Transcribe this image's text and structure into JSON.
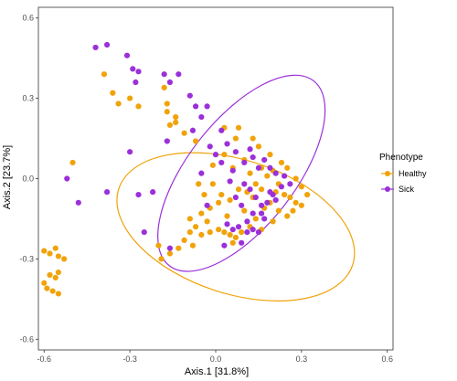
{
  "chart_data": {
    "type": "scatter",
    "title": "",
    "xlabel": "Axis.1   [31.8%]",
    "ylabel": "Axis.2   [23.7%]",
    "xlim": [
      -0.62,
      0.62
    ],
    "ylim": [
      -0.64,
      0.64
    ],
    "x_ticks": [
      -0.6,
      -0.3,
      0.0,
      0.3,
      0.6
    ],
    "y_ticks": [
      -0.6,
      -0.3,
      0.0,
      0.3,
      0.6
    ],
    "x_tick_labels": [
      "-0.6",
      "-0.3",
      "0.0",
      "0.3",
      "0.6"
    ],
    "y_tick_labels": [
      "-0.6",
      "-0.3",
      "0.0",
      "0.3",
      "0.6"
    ],
    "grid": false,
    "legend": {
      "title": "Phenotype",
      "placement": "right"
    },
    "series": [
      {
        "name": "Healthy",
        "color": "#f0a30a",
        "ellipse": {
          "cx": 0.07,
          "cy": -0.18,
          "rx": 0.43,
          "ry": 0.25,
          "angle_deg": 18
        },
        "points": [
          [
            -0.6,
            -0.27
          ],
          [
            -0.58,
            -0.28
          ],
          [
            -0.56,
            -0.26
          ],
          [
            -0.55,
            -0.29
          ],
          [
            -0.55,
            -0.35
          ],
          [
            -0.56,
            -0.37
          ],
          [
            -0.58,
            -0.36
          ],
          [
            -0.6,
            -0.39
          ],
          [
            -0.59,
            -0.41
          ],
          [
            -0.57,
            -0.42
          ],
          [
            -0.55,
            -0.43
          ],
          [
            -0.53,
            -0.3
          ],
          [
            -0.5,
            0.06
          ],
          [
            -0.39,
            0.39
          ],
          [
            -0.36,
            0.32
          ],
          [
            -0.34,
            0.28
          ],
          [
            -0.3,
            0.3
          ],
          [
            -0.27,
            0.27
          ],
          [
            -0.18,
            0.34
          ],
          [
            -0.17,
            0.28
          ],
          [
            -0.17,
            0.25
          ],
          [
            -0.14,
            0.23
          ],
          [
            -0.16,
            0.2
          ],
          [
            -0.14,
            0.21
          ],
          [
            -0.11,
            0.17
          ],
          [
            -0.07,
            0.14
          ],
          [
            0.03,
            0.19
          ],
          [
            0.07,
            0.15
          ],
          [
            0.08,
            0.19
          ],
          [
            0.13,
            0.15
          ],
          [
            0.15,
            0.12
          ],
          [
            0.19,
            0.09
          ],
          [
            0.23,
            0.06
          ],
          [
            0.25,
            0.04
          ],
          [
            0.28,
            0.0
          ],
          [
            0.3,
            -0.03
          ],
          [
            0.32,
            -0.06
          ],
          [
            0.3,
            -0.1
          ],
          [
            0.27,
            -0.12
          ],
          [
            0.25,
            -0.14
          ],
          [
            0.24,
            -0.06
          ],
          [
            0.21,
            -0.05
          ],
          [
            0.19,
            -0.09
          ],
          [
            0.17,
            -0.11
          ],
          [
            0.14,
            -0.15
          ],
          [
            0.12,
            -0.18
          ],
          [
            0.09,
            -0.2
          ],
          [
            0.07,
            -0.22
          ],
          [
            0.05,
            -0.21
          ],
          [
            0.03,
            -0.2
          ],
          [
            0.01,
            -0.19
          ],
          [
            -0.02,
            -0.2
          ],
          [
            -0.05,
            -0.21
          ],
          [
            -0.07,
            -0.18
          ],
          [
            -0.09,
            -0.2
          ],
          [
            -0.11,
            -0.23
          ],
          [
            -0.13,
            -0.26
          ],
          [
            -0.16,
            -0.28
          ],
          [
            -0.19,
            -0.3
          ],
          [
            -0.09,
            -0.15
          ],
          [
            -0.05,
            -0.13
          ],
          [
            -0.02,
            -0.11
          ],
          [
            0.01,
            -0.09
          ],
          [
            -0.04,
            -0.06
          ],
          [
            -0.06,
            -0.02
          ],
          [
            -0.01,
            -0.02
          ],
          [
            0.02,
            -0.06
          ],
          [
            0.05,
            -0.08
          ],
          [
            0.08,
            -0.04
          ],
          [
            0.11,
            -0.05
          ],
          [
            0.13,
            -0.07
          ],
          [
            0.16,
            -0.04
          ],
          [
            0.18,
            0.01
          ],
          [
            0.16,
            0.04
          ],
          [
            0.2,
            0.03
          ],
          [
            0.22,
            -0.02
          ],
          [
            0.26,
            -0.07
          ],
          [
            0.28,
            -0.09
          ],
          [
            0.12,
            0.02
          ],
          [
            0.1,
            0.07
          ],
          [
            0.06,
            0.04
          ],
          [
            0.03,
            0.09
          ],
          [
            -0.01,
            0.05
          ],
          [
            0.04,
            -0.14
          ],
          [
            0.1,
            -0.12
          ],
          [
            0.2,
            -0.16
          ],
          [
            0.16,
            -0.19
          ],
          [
            0.06,
            -0.24
          ],
          [
            -0.03,
            -0.16
          ],
          [
            -0.08,
            -0.25
          ],
          [
            -0.2,
            -0.25
          ],
          [
            0.22,
            -0.12
          ],
          [
            0.14,
            -0.02
          ]
        ]
      },
      {
        "name": "Sick",
        "color": "#9b30d9",
        "ellipse": {
          "cx": 0.09,
          "cy": 0.02,
          "rx": 0.41,
          "ry": 0.2,
          "angle_deg": -52
        },
        "points": [
          [
            -0.42,
            0.49
          ],
          [
            -0.38,
            0.5
          ],
          [
            -0.31,
            0.46
          ],
          [
            -0.29,
            0.41
          ],
          [
            -0.27,
            0.4
          ],
          [
            -0.28,
            0.36
          ],
          [
            -0.18,
            0.39
          ],
          [
            -0.16,
            0.36
          ],
          [
            -0.13,
            0.39
          ],
          [
            -0.09,
            0.31
          ],
          [
            -0.07,
            0.27
          ],
          [
            -0.03,
            0.27
          ],
          [
            -0.05,
            0.23
          ],
          [
            0.02,
            0.18
          ],
          [
            0.04,
            0.13
          ],
          [
            0.07,
            0.1
          ],
          [
            0.1,
            0.06
          ],
          [
            0.13,
            0.08
          ],
          [
            0.15,
            0.04
          ],
          [
            0.17,
            0.07
          ],
          [
            0.19,
            0.04
          ],
          [
            0.21,
            0.02
          ],
          [
            0.24,
            0.01
          ],
          [
            0.26,
            -0.02
          ],
          [
            0.2,
            -0.06
          ],
          [
            0.18,
            -0.09
          ],
          [
            0.16,
            -0.1
          ],
          [
            0.13,
            -0.13
          ],
          [
            0.11,
            -0.16
          ],
          [
            0.08,
            -0.18
          ],
          [
            0.06,
            -0.19
          ],
          [
            0.04,
            -0.17
          ],
          [
            0.11,
            -0.2
          ],
          [
            0.13,
            -0.19
          ],
          [
            0.15,
            -0.2
          ],
          [
            0.09,
            -0.1
          ],
          [
            0.07,
            -0.07
          ],
          [
            0.12,
            -0.04
          ],
          [
            0.14,
            -0.07
          ],
          [
            -0.05,
            0.02
          ],
          [
            -0.02,
            0.12
          ],
          [
            0.0,
            0.09
          ],
          [
            0.02,
            0.06
          ],
          [
            -0.3,
            0.1
          ],
          [
            -0.27,
            -0.06
          ],
          [
            -0.22,
            -0.05
          ],
          [
            -0.25,
            -0.2
          ],
          [
            -0.16,
            -0.26
          ],
          [
            -0.38,
            -0.05
          ],
          [
            -0.48,
            -0.09
          ],
          [
            -0.52,
            0.0
          ],
          [
            0.09,
            -0.24
          ],
          [
            0.17,
            -0.15
          ],
          [
            0.03,
            -0.25
          ],
          [
            0.21,
            -0.08
          ],
          [
            0.1,
            -0.02
          ],
          [
            0.05,
            -0.01
          ],
          [
            0.16,
            -0.13
          ],
          [
            0.23,
            -0.03
          ],
          [
            0.12,
            0.11
          ],
          [
            -0.17,
            0.14
          ],
          [
            -0.08,
            0.18
          ],
          [
            0.06,
            0.03
          ],
          [
            0.19,
            -0.05
          ],
          [
            -0.03,
            -0.1
          ]
        ]
      }
    ]
  }
}
